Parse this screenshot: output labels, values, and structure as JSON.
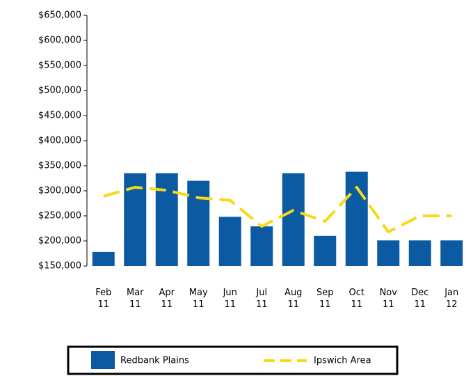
{
  "chart_data": {
    "type": "bar",
    "categories": [
      [
        "Feb",
        "11"
      ],
      [
        "Mar",
        "11"
      ],
      [
        "Apr",
        "11"
      ],
      [
        "May",
        "11"
      ],
      [
        "Jun",
        "11"
      ],
      [
        "Jul",
        "11"
      ],
      [
        "Aug",
        "11"
      ],
      [
        "Sep",
        "11"
      ],
      [
        "Oct",
        "11"
      ],
      [
        "Nov",
        "11"
      ],
      [
        "Dec",
        "11"
      ],
      [
        "Jan",
        "12"
      ]
    ],
    "series": [
      {
        "name": "Redbank Plains",
        "type": "bar",
        "color": "#0b5aa2",
        "values": [
          178000,
          335000,
          335000,
          320000,
          248000,
          229000,
          335000,
          210000,
          338000,
          201000,
          201000,
          201000
        ]
      },
      {
        "name": "Ipswich Area",
        "type": "line",
        "color": "#f7d917",
        "values": [
          289000,
          307000,
          301000,
          286000,
          281000,
          229000,
          261000,
          239000,
          307000,
          218000,
          250000,
          250000
        ]
      }
    ],
    "ylim": [
      150000,
      650000
    ],
    "yticks": [
      {
        "value": 150000,
        "label": "$150,000"
      },
      {
        "value": 200000,
        "label": "$200,000"
      },
      {
        "value": 250000,
        "label": "$250,000"
      },
      {
        "value": 300000,
        "label": "$300,000"
      },
      {
        "value": 350000,
        "label": "$350,000"
      },
      {
        "value": 400000,
        "label": "$400,000"
      },
      {
        "value": 450000,
        "label": "$450,000"
      },
      {
        "value": 500000,
        "label": "$500,000"
      },
      {
        "value": 550000,
        "label": "$550,000"
      },
      {
        "value": 600000,
        "label": "$600,000"
      },
      {
        "value": 650000,
        "label": "$650,000"
      }
    ],
    "legend": "bottom"
  }
}
